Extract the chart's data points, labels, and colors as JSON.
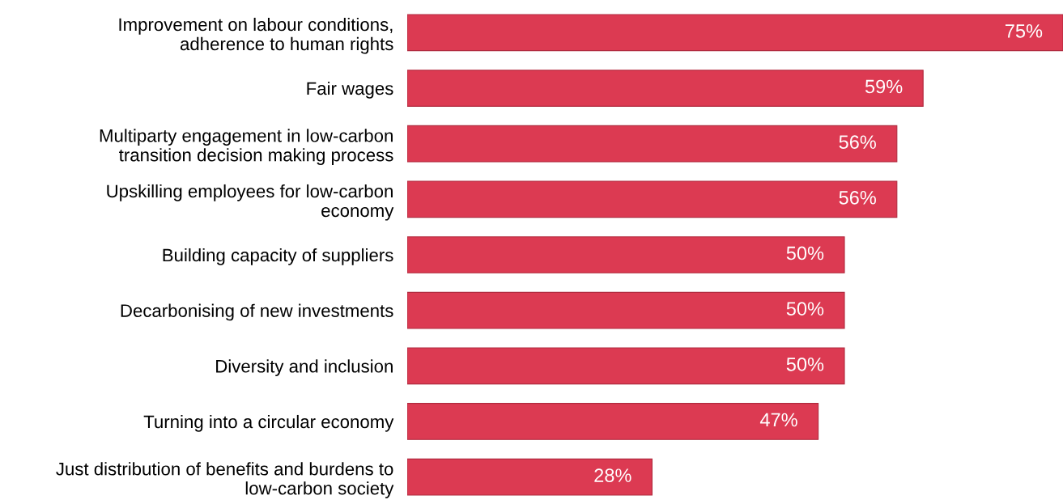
{
  "chart_data": {
    "type": "bar",
    "orientation": "horizontal",
    "categories": [
      "Improvement on labour conditions,\nadherence to human rights",
      "Fair wages",
      "Multiparty engagement in low-carbon\ntransition decision making process",
      "Upskilling employees for low-carbon\neconomy",
      "Building capacity of suppliers",
      "Decarbonising of new investments",
      "Diversity and inclusion",
      "Turning into a circular economy",
      "Just distribution of benefits and burdens to\nlow-carbon society"
    ],
    "values": [
      75,
      59,
      56,
      56,
      50,
      50,
      50,
      47,
      28
    ],
    "value_labels": [
      "75%",
      "59%",
      "56%",
      "56%",
      "50%",
      "50%",
      "50%",
      "47%",
      "28%"
    ],
    "color": "#dc3a52",
    "grid": false,
    "legend": false
  }
}
